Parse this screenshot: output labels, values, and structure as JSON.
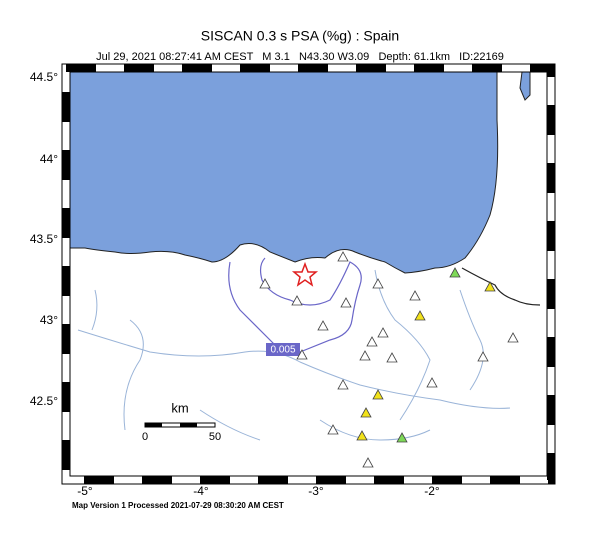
{
  "header": {
    "title": "SISCAN 0.3 s PSA (%g) : Spain",
    "subtitle": "Jul 29, 2021 08:27:41 AM CEST   M 3.1   N43.30 W3.09   Depth: 61.1km   ID:22169"
  },
  "axes": {
    "lon_labels": [
      "-5°",
      "-4°",
      "-3°",
      "-2°"
    ],
    "lat_labels": [
      "44.5°",
      "44°",
      "43.5°",
      "43°",
      "42.5°"
    ]
  },
  "scale": {
    "unit": "km",
    "labels": [
      "0",
      "50"
    ]
  },
  "contour": {
    "label": "0.005"
  },
  "footer": "Map Version 1 Processed 2021-07-29 08:30:20 AM CEST"
}
